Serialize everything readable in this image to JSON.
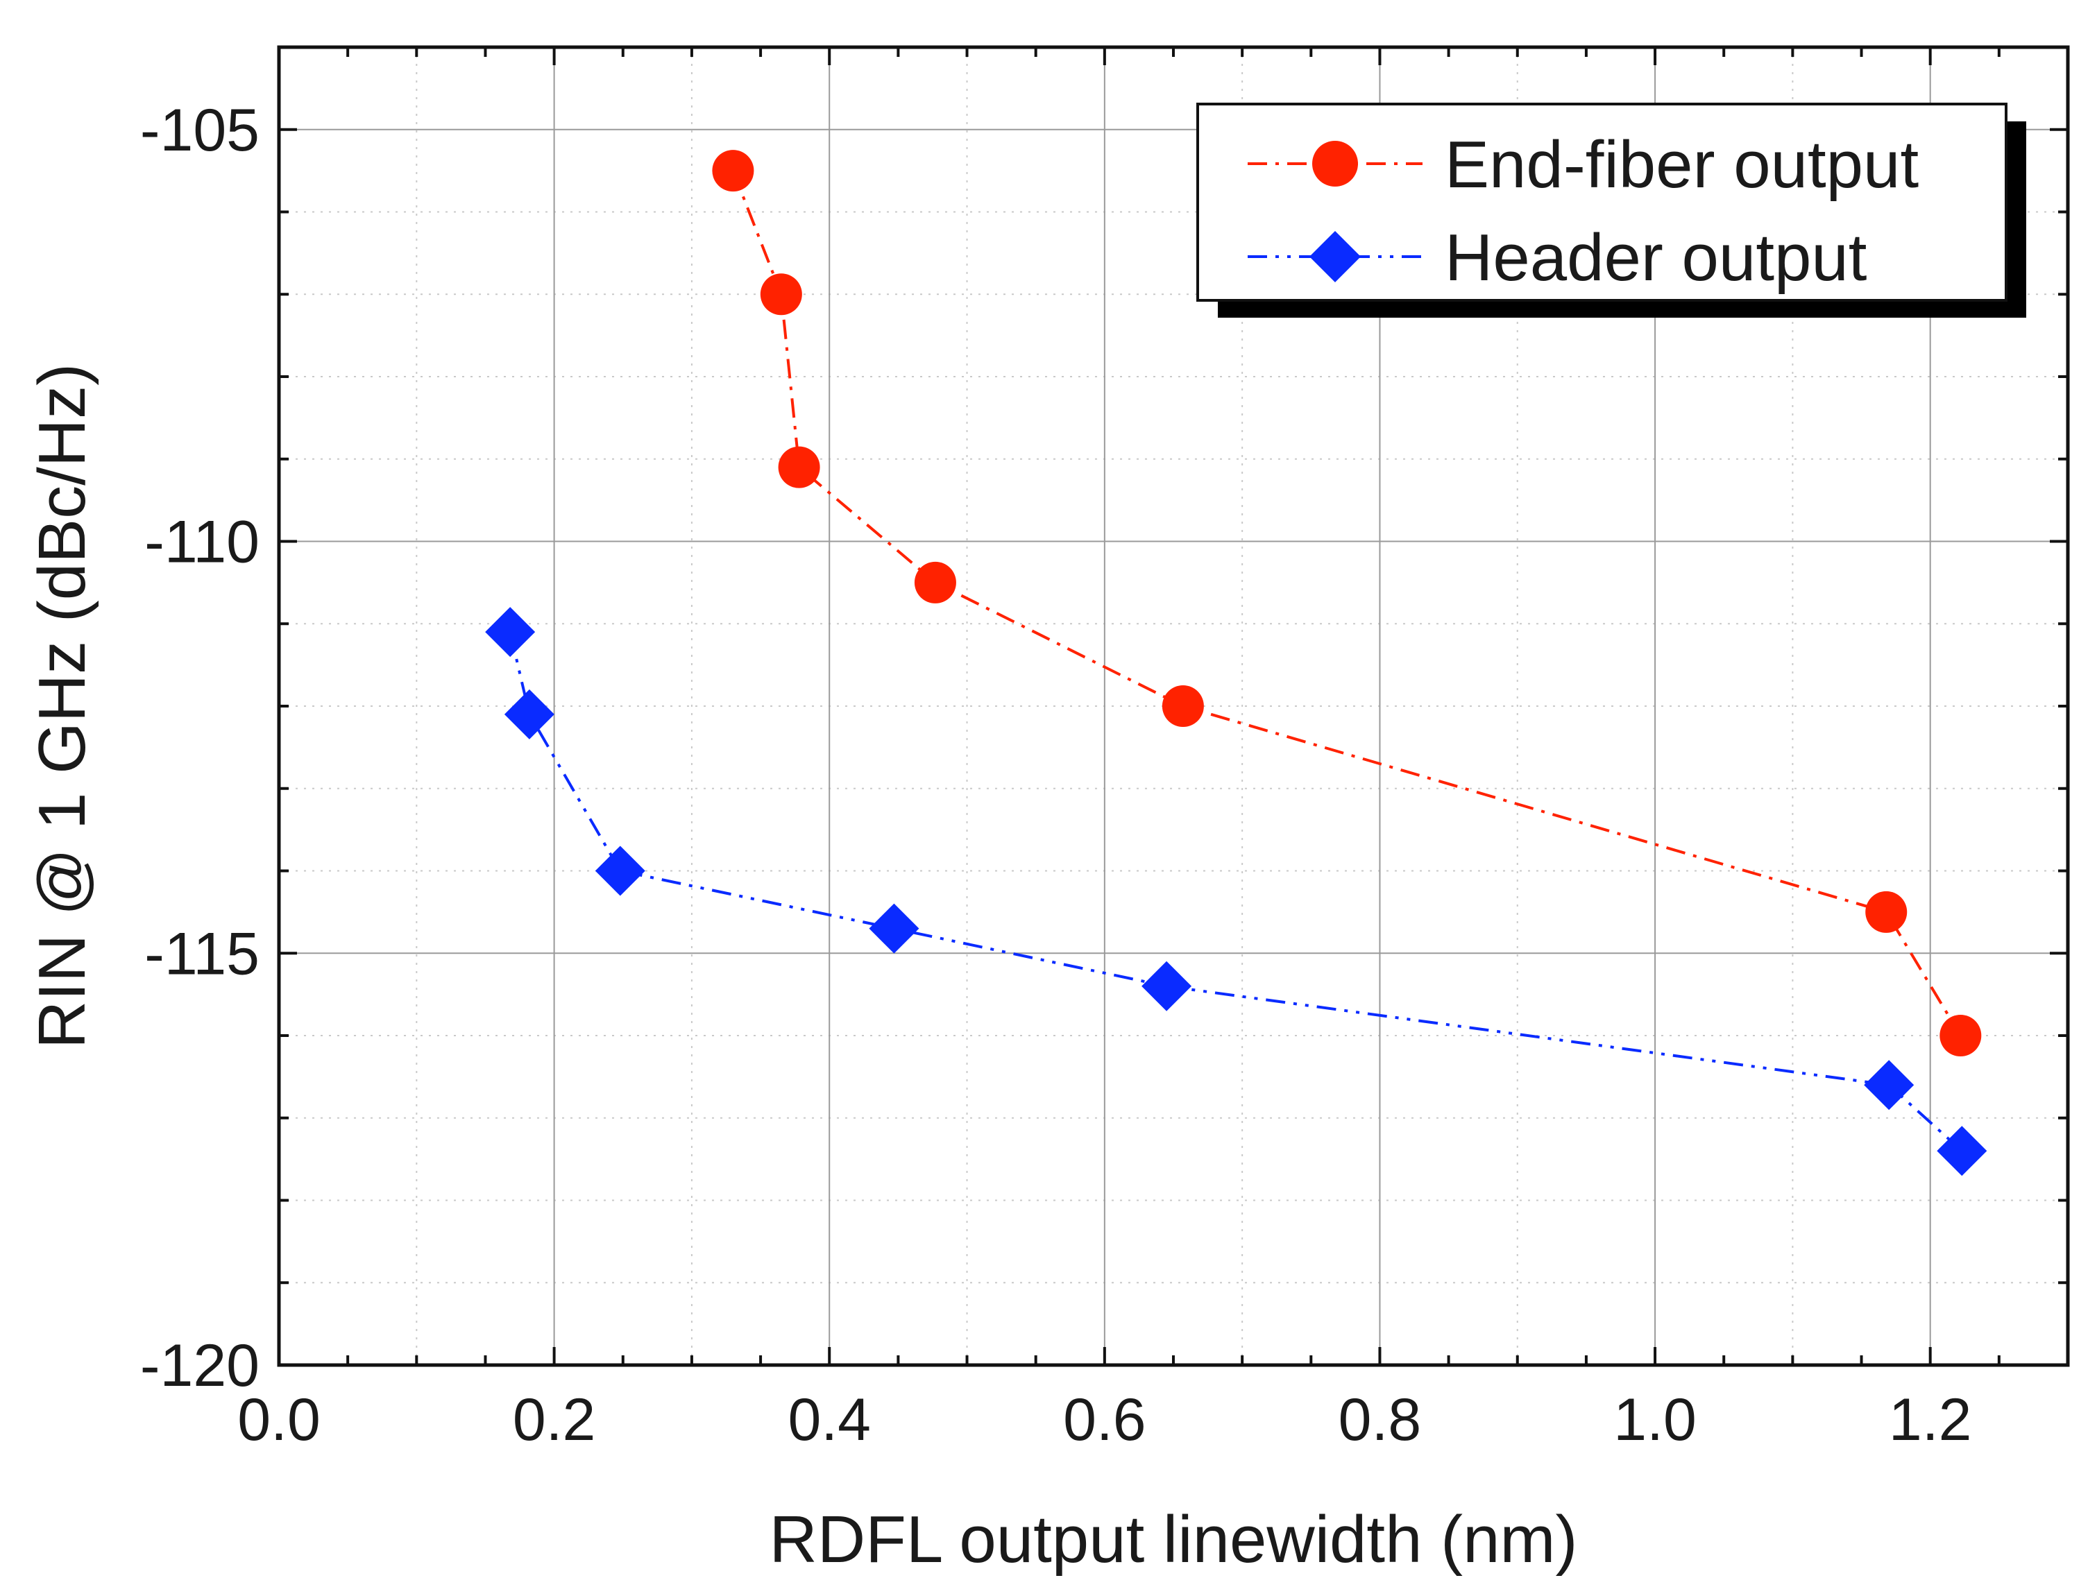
{
  "chart_data": {
    "type": "line",
    "title": "",
    "xlabel": "RDFL output linewidth (nm)",
    "ylabel": "RIN @ 1 GHz (dBc/Hz)",
    "xlim": [
      0.0,
      1.3
    ],
    "ylim": [
      -120,
      -104
    ],
    "xticks": [
      0.0,
      0.2,
      0.4,
      0.6,
      0.8,
      1.0,
      1.2
    ],
    "xtick_labels": [
      "0.0",
      "0.2",
      "0.4",
      "0.6",
      "0.8",
      "1.0",
      "1.2"
    ],
    "yticks": [
      -120,
      -115,
      -110,
      -105
    ],
    "ytick_labels": [
      "-120",
      "-115",
      "-110",
      "-105"
    ],
    "grid": true,
    "legend_position": "top-right",
    "series": [
      {
        "name": "End-fiber output",
        "color": "#ff2200",
        "marker": "circle",
        "line_style": "dash-dot",
        "x": [
          0.33,
          0.365,
          0.378,
          0.477,
          0.657,
          1.168,
          1.222
        ],
        "y": [
          -105.5,
          -107.0,
          -109.1,
          -110.5,
          -112.0,
          -114.5,
          -116.0
        ]
      },
      {
        "name": "Header output",
        "color": "#0a2bff",
        "marker": "diamond",
        "line_style": "dash-dot-dot",
        "x": [
          0.168,
          0.182,
          0.248,
          0.447,
          0.645,
          1.17,
          1.223
        ],
        "y": [
          -111.1,
          -112.1,
          -114.0,
          -114.7,
          -115.4,
          -116.6,
          -117.4
        ]
      }
    ]
  }
}
